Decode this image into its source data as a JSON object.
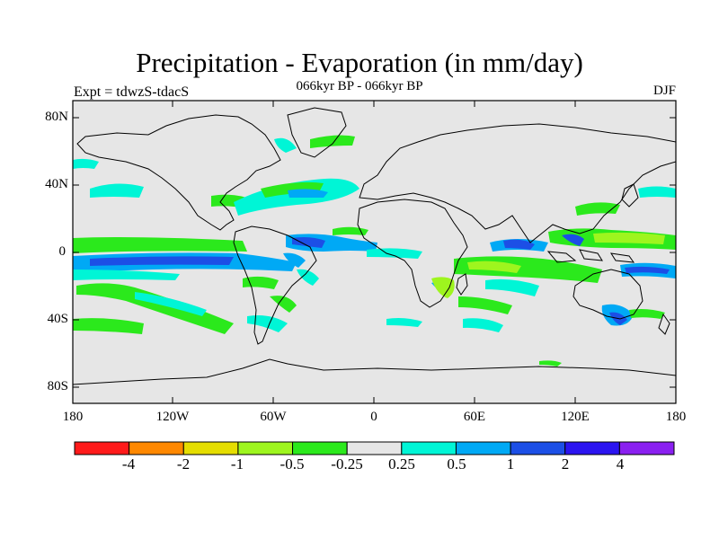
{
  "header": {
    "title": "Precipitation - Evaporation (in mm/day)",
    "subtitle": "066kyr BP - 066kyr BP",
    "experiment": "Expt = tdwzS-tdacS",
    "season": "DJF"
  },
  "axes": {
    "lat_ticks": [
      "80N",
      "40N",
      "0",
      "40S",
      "80S"
    ],
    "lon_ticks": [
      "180",
      "120W",
      "60W",
      "0",
      "60E",
      "120E",
      "180"
    ]
  },
  "colorbar": {
    "colors": [
      "#ff1a1a",
      "#ff8800",
      "#e5dd00",
      "#9ef51e",
      "#2be91c",
      "#e6e6e6",
      "#00f5d6",
      "#00a9f5",
      "#1c4fe6",
      "#2b14f0",
      "#8a20f0"
    ],
    "labels": [
      "-4",
      "-2",
      "-1",
      "-0.5",
      "-0.25",
      "0.25",
      "0.5",
      "1",
      "2",
      "4"
    ]
  },
  "colors": {
    "background_field": "#e6e6e6",
    "frame": "#000000"
  }
}
